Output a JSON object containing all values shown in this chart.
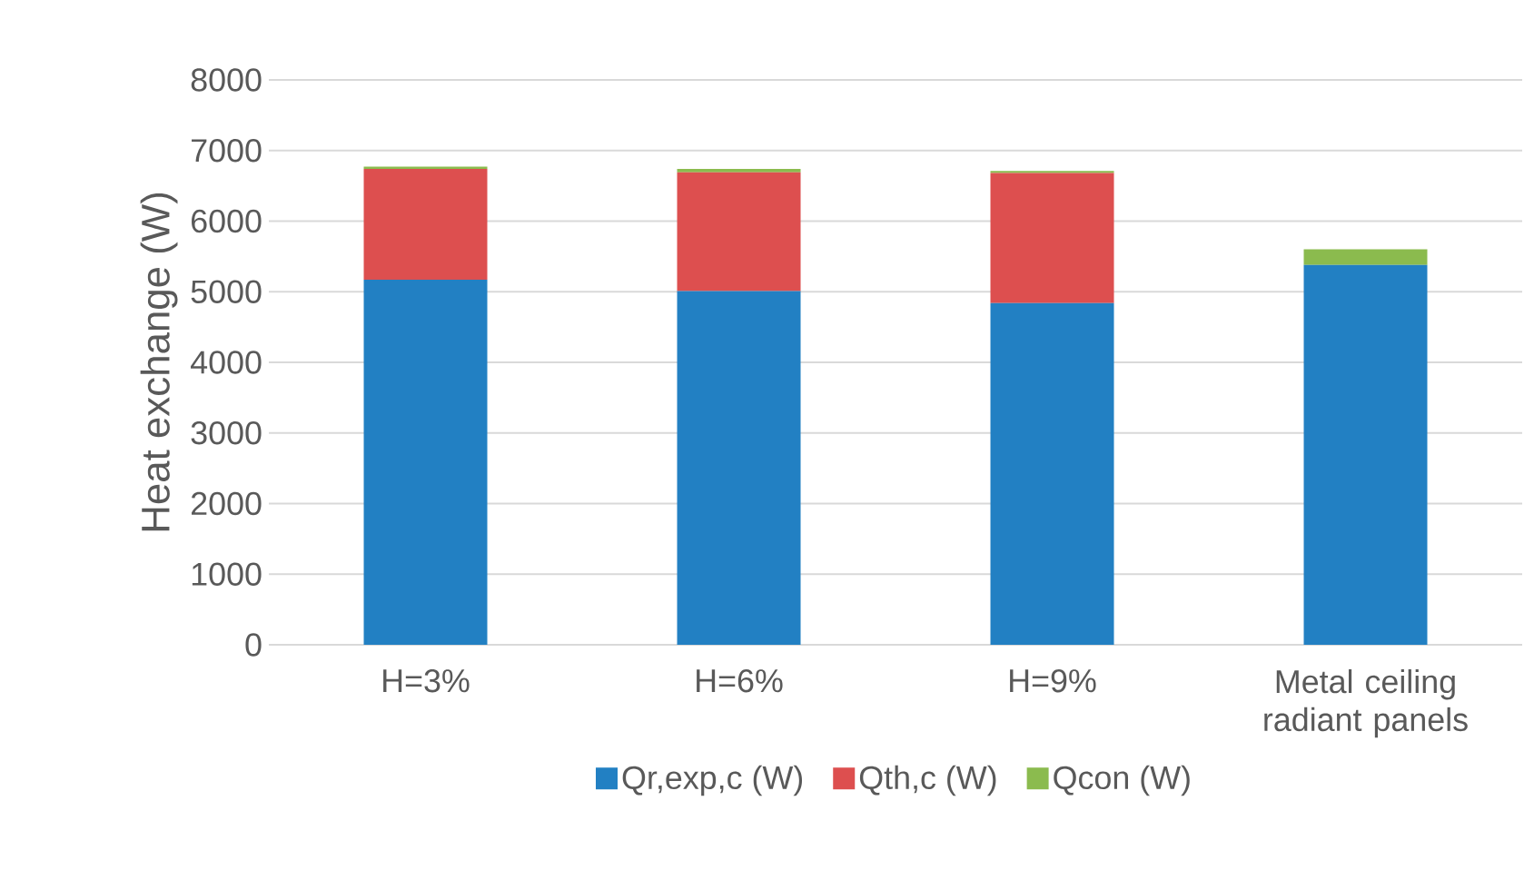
{
  "chart_data": {
    "type": "bar",
    "stacked": true,
    "ylabel": "Heat exchange (W)",
    "categories": [
      "H=3%",
      "H=6%",
      "H=9%",
      "Metal ceiling radiant panels"
    ],
    "series": [
      {
        "name": "Qr,exp,c (W)",
        "color": "#2280c3",
        "values": [
          5170,
          5010,
          4840,
          5380
        ]
      },
      {
        "name": "Qth,c (W)",
        "color": "#dd4f4f",
        "values": [
          1570,
          1680,
          1840,
          0
        ]
      },
      {
        "name": "Qcon (W)",
        "color": "#8bbb4e",
        "values": [
          30,
          50,
          30,
          220
        ]
      }
    ],
    "ylim": [
      0,
      8000
    ],
    "yticks": [
      0,
      1000,
      2000,
      3000,
      4000,
      5000,
      6000,
      7000,
      8000
    ],
    "grid": "y",
    "legend": "bottom"
  }
}
